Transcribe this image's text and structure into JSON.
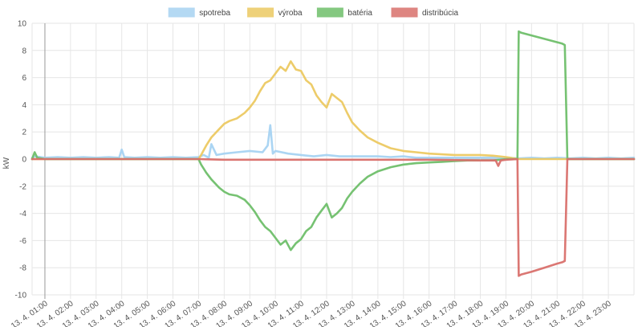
{
  "chart_data": {
    "type": "line",
    "ylabel": "kW",
    "ylim": [
      -10,
      10
    ],
    "yticks": [
      -10,
      -8,
      -6,
      -4,
      -2,
      0,
      2,
      4,
      6,
      8,
      10
    ],
    "xlim": [
      0.5,
      24
    ],
    "x_tick_labels": [
      "13. 4. 01:00",
      "13. 4. 02:00",
      "13. 4. 03:00",
      "13. 4. 04:00",
      "13. 4. 05:00",
      "13. 4. 06:00",
      "13. 4. 07:00",
      "13. 4. 08:00",
      "13. 4. 09:00",
      "13. 4. 10:00",
      "13. 4. 11:00",
      "13. 4. 12:00",
      "13. 4. 13:00",
      "13. 4. 14:00",
      "13. 4. 15:00",
      "13. 4. 16:00",
      "13. 4. 17:00",
      "13. 4. 18:00",
      "13. 4. 19:00",
      "13. 4. 20:00",
      "13. 4. 21:00",
      "13. 4. 22:00",
      "13. 4. 23:00"
    ],
    "legend_position": "top-center",
    "grid": true,
    "series": [
      {
        "name": "spotreba",
        "color": "#a7d3f2",
        "x": [
          0.5,
          0.6,
          1,
          1.5,
          2,
          2.5,
          3,
          3.5,
          3.9,
          4,
          4.1,
          4.5,
          5,
          5.5,
          6,
          6.5,
          7,
          7.2,
          7.4,
          7.5,
          7.7,
          8,
          8.5,
          9,
          9.5,
          9.7,
          9.8,
          9.9,
          10,
          10.5,
          11,
          11.5,
          12,
          12.5,
          13,
          13.5,
          14,
          14.5,
          15,
          15.5,
          16,
          16.5,
          17,
          17.5,
          18,
          18.5,
          19,
          19.5,
          20,
          20.5,
          21,
          21.5,
          22,
          22.5,
          23,
          23.5,
          24
        ],
        "y": [
          0.1,
          0.2,
          0.1,
          0.15,
          0.1,
          0.15,
          0.1,
          0.15,
          0.1,
          0.7,
          0.15,
          0.1,
          0.15,
          0.1,
          0.15,
          0.1,
          0.15,
          0.3,
          0.1,
          1.1,
          0.3,
          0.4,
          0.5,
          0.6,
          0.5,
          1.0,
          2.5,
          0.4,
          0.6,
          0.4,
          0.3,
          0.2,
          0.3,
          0.2,
          0.2,
          0.2,
          0.2,
          0.15,
          0.2,
          0.1,
          0.1,
          0.1,
          0.1,
          0.1,
          0.1,
          0.1,
          0.1,
          0.05,
          0.1,
          0.05,
          0.1,
          0.05,
          0.1,
          0.05,
          0.1,
          0.05,
          0.1
        ]
      },
      {
        "name": "výroba",
        "color": "#ecc962",
        "x": [
          0.5,
          7.0,
          7.1,
          7.3,
          7.5,
          7.8,
          8.0,
          8.2,
          8.5,
          8.8,
          9.0,
          9.2,
          9.4,
          9.6,
          9.8,
          10.0,
          10.2,
          10.4,
          10.6,
          10.8,
          11.0,
          11.2,
          11.4,
          11.6,
          11.8,
          12.0,
          12.2,
          12.4,
          12.6,
          12.8,
          13.0,
          13.3,
          13.6,
          14.0,
          14.5,
          15.0,
          15.5,
          16.0,
          16.5,
          17.0,
          17.5,
          18.0,
          18.5,
          19.0,
          19.5,
          24.0
        ],
        "y": [
          0,
          0,
          0.3,
          1.0,
          1.6,
          2.2,
          2.6,
          2.8,
          3.0,
          3.4,
          3.8,
          4.3,
          5.0,
          5.6,
          5.8,
          6.3,
          6.8,
          6.5,
          7.2,
          6.6,
          6.5,
          5.8,
          5.5,
          4.7,
          4.2,
          3.8,
          4.8,
          4.5,
          4.2,
          3.4,
          2.7,
          2.1,
          1.6,
          1.2,
          0.8,
          0.6,
          0.5,
          0.4,
          0.35,
          0.3,
          0.3,
          0.3,
          0.25,
          0.15,
          0,
          0
        ]
      },
      {
        "name": "batéria",
        "color": "#6fbf6a",
        "x": [
          0.5,
          0.6,
          0.7,
          1,
          7.0,
          7.1,
          7.3,
          7.5,
          7.8,
          8.0,
          8.2,
          8.5,
          8.8,
          9.0,
          9.2,
          9.4,
          9.6,
          9.8,
          10.0,
          10.2,
          10.4,
          10.6,
          10.8,
          11.0,
          11.2,
          11.4,
          11.6,
          11.8,
          12.0,
          12.2,
          12.4,
          12.6,
          12.8,
          13.0,
          13.3,
          13.6,
          14.0,
          14.5,
          15.0,
          15.5,
          16.0,
          16.5,
          17.0,
          17.5,
          18.0,
          18.5,
          19.0,
          19.45,
          19.5,
          19.6,
          21.2,
          21.3,
          21.4,
          24.0
        ],
        "y": [
          0,
          0.5,
          0.1,
          0,
          0,
          -0.4,
          -1.0,
          -1.5,
          -2.1,
          -2.4,
          -2.6,
          -2.7,
          -3.0,
          -3.4,
          -3.9,
          -4.5,
          -5.0,
          -5.3,
          -5.8,
          -6.3,
          -6.0,
          -6.7,
          -6.2,
          -5.9,
          -5.3,
          -5.0,
          -4.3,
          -3.8,
          -3.3,
          -4.3,
          -4.0,
          -3.6,
          -2.9,
          -2.4,
          -1.8,
          -1.3,
          -0.9,
          -0.6,
          -0.4,
          -0.3,
          -0.25,
          -0.2,
          -0.15,
          -0.1,
          -0.1,
          -0.1,
          0,
          0,
          9.4,
          9.3,
          8.5,
          8.4,
          0,
          0
        ]
      },
      {
        "name": "distribúcia",
        "color": "#d9706c",
        "x": [
          0.5,
          7.0,
          8.0,
          10.0,
          12.0,
          14.0,
          16.0,
          18.0,
          18.6,
          18.7,
          18.8,
          19.0,
          19.45,
          19.5,
          19.6,
          20.0,
          20.5,
          21.0,
          21.2,
          21.3,
          21.4,
          24.0
        ],
        "y": [
          0,
          0,
          -0.05,
          -0.05,
          -0.05,
          -0.05,
          -0.05,
          -0.1,
          -0.1,
          -0.5,
          -0.1,
          -0.05,
          0,
          -8.6,
          -8.5,
          -8.3,
          -8.0,
          -7.7,
          -7.6,
          -7.5,
          0,
          0
        ]
      }
    ]
  }
}
